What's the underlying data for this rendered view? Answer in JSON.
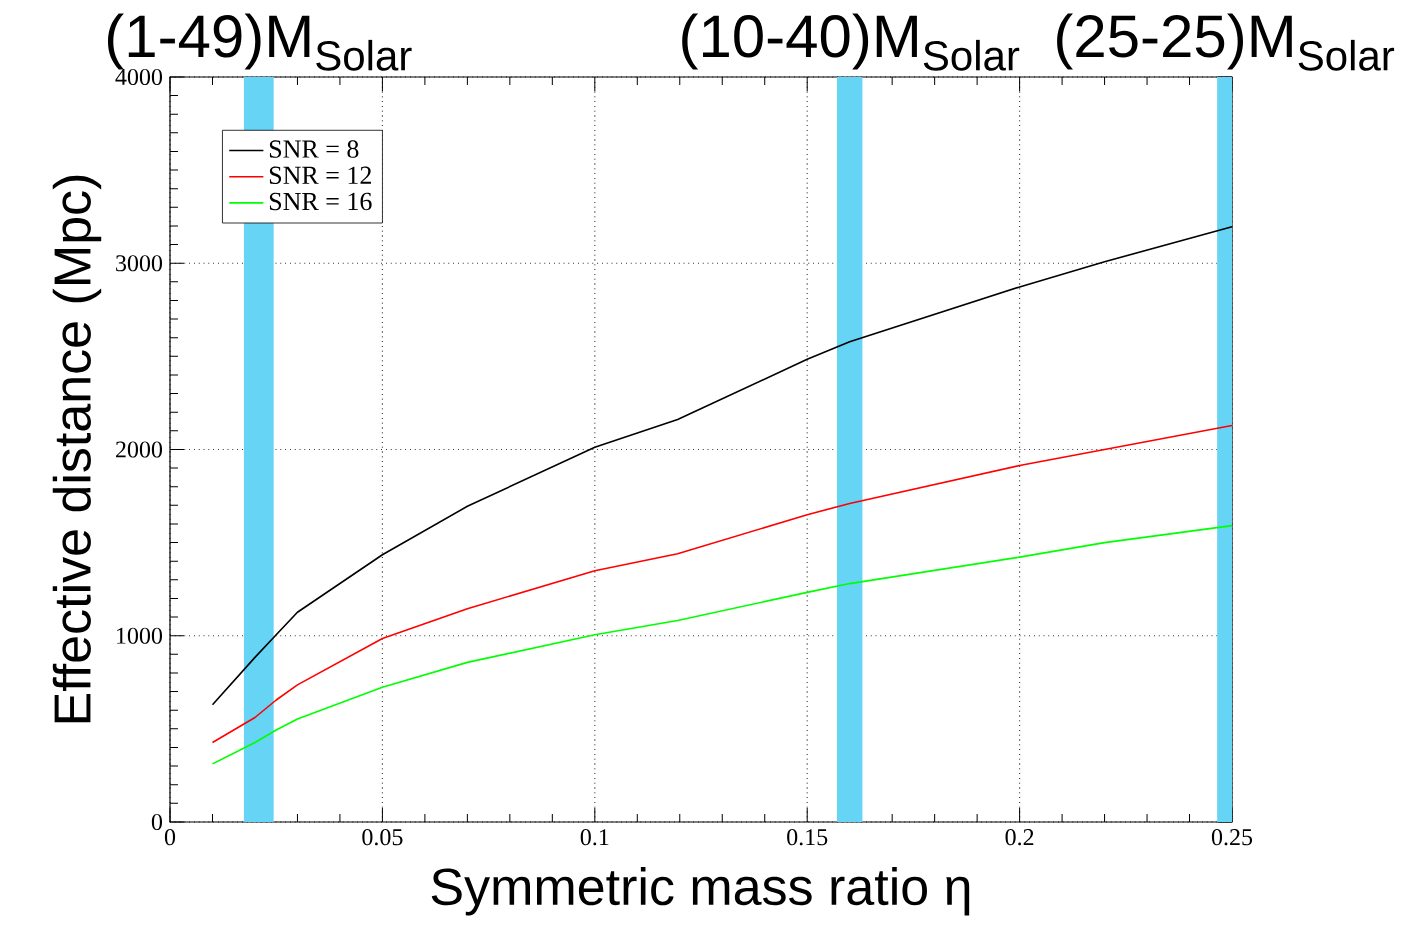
{
  "chart_data": {
    "type": "line",
    "xlabel": "Symmetric mass ratio η",
    "ylabel": "Effective distance (Mpc)",
    "x": [
      0.01,
      0.02,
      0.025,
      0.03,
      0.05,
      0.07,
      0.1,
      0.1195,
      0.15,
      0.16,
      0.2,
      0.22,
      0.25
    ],
    "series": [
      {
        "name": "SNR = 8",
        "color": "#000000",
        "values": [
          629,
          884,
          1005,
          1126,
          1435,
          1695,
          2012,
          2161,
          2484,
          2578,
          2873,
          3008,
          3196
        ]
      },
      {
        "name": "SNR = 12",
        "color": "#ff0000",
        "values": [
          427,
          561,
          655,
          736,
          985,
          1145,
          1349,
          1440,
          1650,
          1710,
          1914,
          2000,
          2129
        ]
      },
      {
        "name": "SNR = 16",
        "color": "#00ff00",
        "values": [
          312,
          427,
          494,
          553,
          723,
          857,
          1005,
          1082,
          1233,
          1280,
          1422,
          1500,
          1591
        ]
      }
    ],
    "xlim": [
      0,
      0.25
    ],
    "ylim": [
      0,
      4000
    ],
    "xticks": [
      0,
      0.05,
      0.1,
      0.15,
      0.2,
      0.25
    ],
    "yticks": [
      0,
      1000,
      2000,
      3000,
      4000
    ],
    "bands": [
      {
        "axis": "x",
        "from": 0.0174,
        "to": 0.0244,
        "label": "(1-49)M$_{Solar}$",
        "color": "#66d4f4"
      },
      {
        "axis": "x",
        "from": 0.157,
        "to": 0.163,
        "label": "(10-40)M$_{Solar}$",
        "color": "#66d4f4"
      },
      {
        "axis": "x",
        "from": 0.2465,
        "to": 0.25,
        "label": "(25-25)M$_{Solar}$",
        "color": "#66d4f4"
      }
    ],
    "grid": true,
    "legend": "top left",
    "marker": "none",
    "line_style": "solid"
  }
}
